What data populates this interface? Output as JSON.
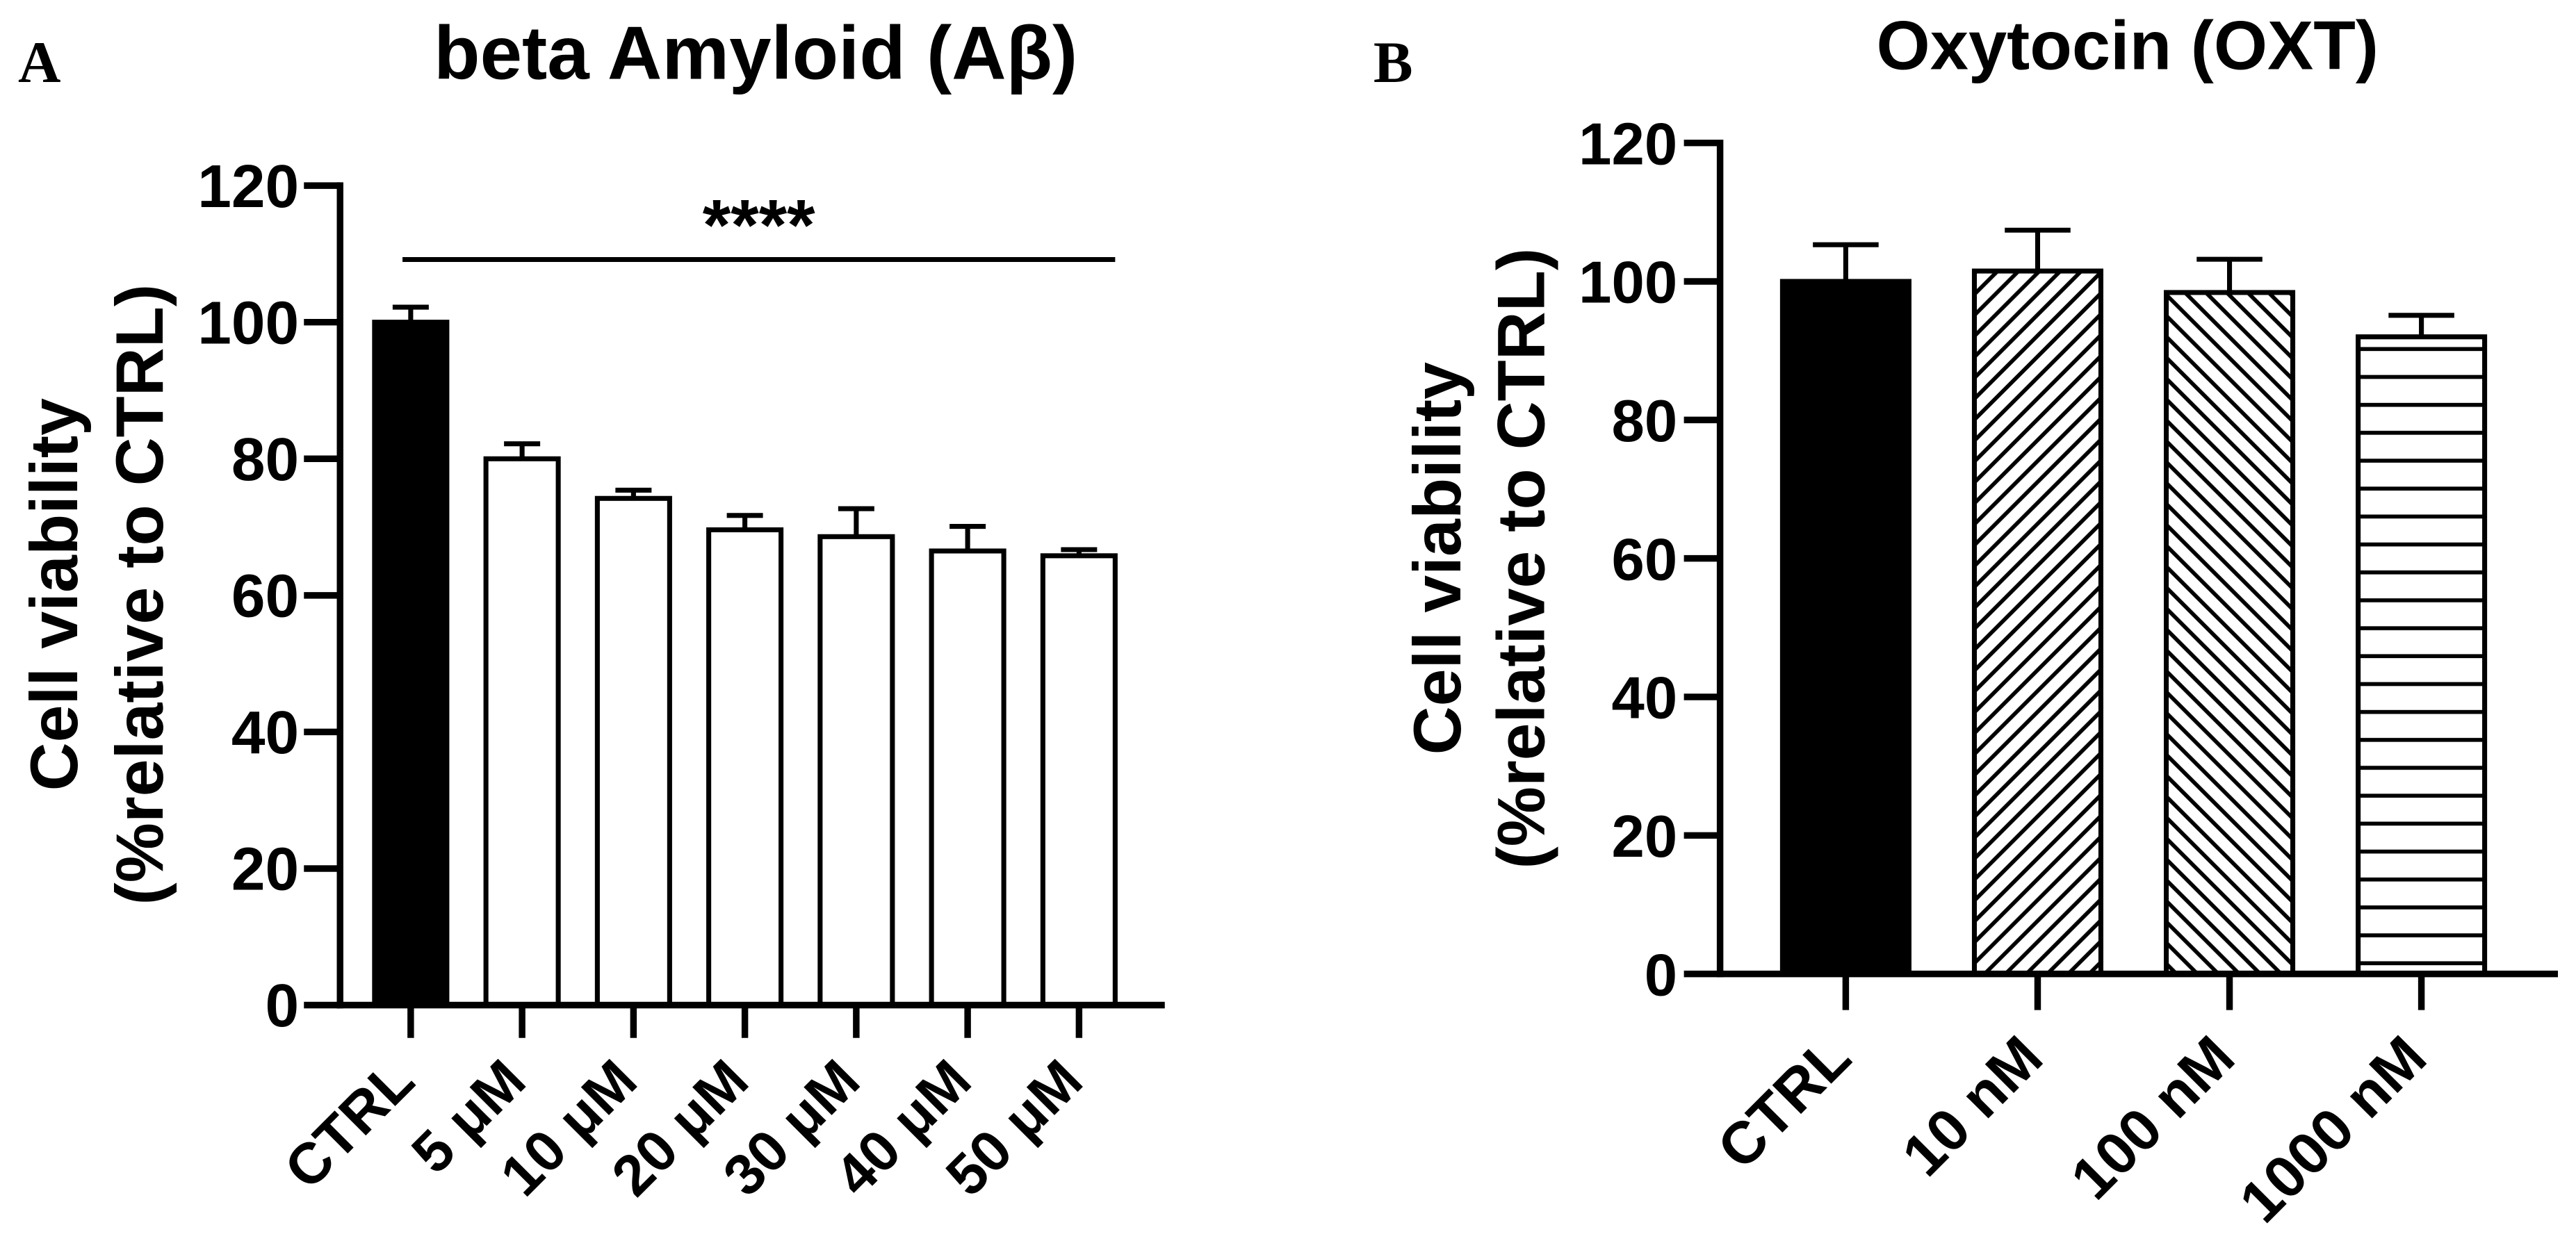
{
  "colors": {
    "background": "#ffffff",
    "axis": "#000000",
    "text": "#000000"
  },
  "chart_data": [
    {
      "panel": "A",
      "type": "bar",
      "title": "beta Amyloid (Aβ)",
      "xlabel": "",
      "ylabel": [
        "Cell viability",
        "(%relative to CTRL)"
      ],
      "categories": [
        "CTRL",
        "5 μM",
        "10 μM",
        "20 μM",
        "30 μM",
        "40 μM",
        "50 μM"
      ],
      "values": [
        100,
        80,
        74.2,
        69.6,
        68.6,
        66.5,
        65.8
      ],
      "errors": [
        2.2,
        2.2,
        1.2,
        2.1,
        4.1,
        3.6,
        0.9
      ],
      "bar_colors": [
        "#000000",
        "#ffffff",
        "#ffffff",
        "#ffffff",
        "#ffffff",
        "#ffffff",
        "#ffffff"
      ],
      "ylim": [
        0,
        120
      ],
      "yticks": [
        0,
        20,
        40,
        60,
        80,
        100,
        120
      ],
      "grid": false,
      "significance": {
        "label": "****",
        "from_index": 0,
        "to_index": 6
      }
    },
    {
      "panel": "B",
      "type": "bar",
      "title": "Oxytocin (OXT)",
      "xlabel": "",
      "ylabel": [
        "Cell viability",
        "(%relative to CTRL)"
      ],
      "categories": [
        "CTRL",
        "10 nM",
        "100 nM",
        "1000 nM"
      ],
      "values": [
        100,
        101.5,
        98.4,
        92
      ],
      "errors": [
        5.3,
        5.9,
        4.8,
        3.1
      ],
      "bar_colors": [
        "#000000",
        "#ffffff",
        "#ffffff",
        "#ffffff"
      ],
      "hatch_angles": [
        null,
        45,
        -45,
        0
      ],
      "ylim": [
        0,
        120
      ],
      "yticks": [
        0,
        20,
        40,
        60,
        80,
        100,
        120
      ],
      "grid": false
    }
  ]
}
